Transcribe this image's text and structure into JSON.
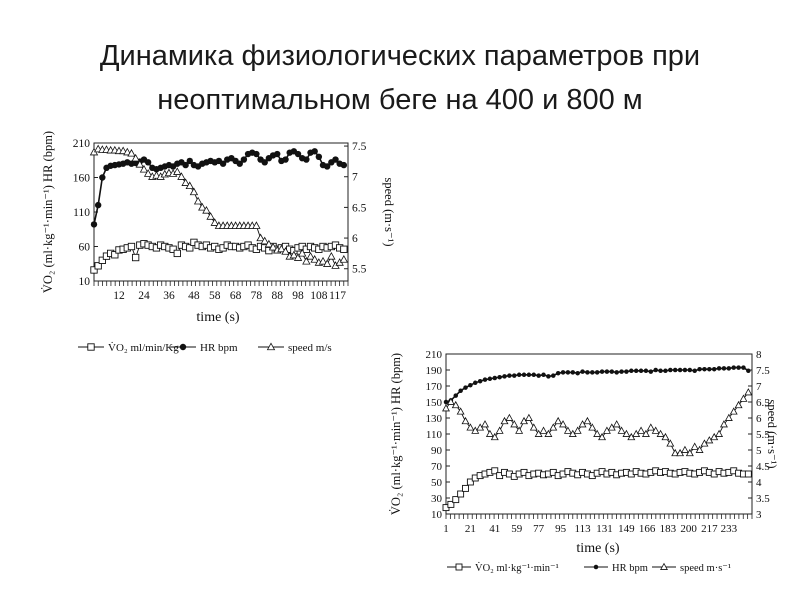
{
  "slide": {
    "title_line1": "Динамика физиологических параметров при",
    "title_line2": "неоптимальном беге на 400 и 800 м"
  },
  "chart_data": [
    {
      "type": "line",
      "title": "",
      "xlabel": "time (s)",
      "ylabel": "V̇O₂ (ml·kg⁻¹·min⁻¹) HR (bpm)",
      "ylabel_right": "speed (m·s⁻¹)",
      "x_ticks": [
        "12",
        "24",
        "36",
        "48",
        "58",
        "68",
        "78",
        "88",
        "98",
        "108",
        "117"
      ],
      "y_ticks": [
        10,
        60,
        110,
        160,
        210
      ],
      "y2_ticks": [
        "5.5",
        "6",
        "6.5",
        "7",
        "7.5"
      ],
      "ylim": [
        10,
        210
      ],
      "y2lim": [
        5.3,
        7.55
      ],
      "xlim": [
        0,
        122
      ],
      "grid": false,
      "legend_position": "bottom",
      "legend": [
        "V̇O₂ ml/min/Kg",
        "HR bpm",
        "speed m/s"
      ],
      "series": [
        {
          "name": "V̇O₂ ml/min/Kg",
          "axis": "left",
          "marker": "square",
          "x": [
            0,
            2,
            4,
            6,
            8,
            10,
            12,
            14,
            16,
            18,
            20,
            22,
            24,
            26,
            28,
            30,
            32,
            34,
            36,
            38,
            40,
            42,
            44,
            46,
            48,
            50,
            52,
            54,
            56,
            58,
            60,
            62,
            64,
            66,
            68,
            70,
            72,
            74,
            76,
            78,
            80,
            82,
            84,
            86,
            88,
            90,
            92,
            94,
            96,
            98,
            100,
            102,
            104,
            106,
            108,
            110,
            112,
            114,
            116,
            118,
            120
          ],
          "values": [
            26,
            32,
            40,
            46,
            50,
            48,
            55,
            56,
            58,
            60,
            44,
            62,
            64,
            62,
            60,
            58,
            62,
            60,
            58,
            56,
            50,
            62,
            60,
            58,
            66,
            62,
            60,
            62,
            58,
            60,
            56,
            58,
            62,
            60,
            60,
            58,
            60,
            62,
            58,
            56,
            60,
            58,
            54,
            60,
            56,
            58,
            60,
            56,
            54,
            58,
            60,
            56,
            60,
            58,
            56,
            60,
            58,
            60,
            62,
            58,
            56
          ]
        },
        {
          "name": "HR bpm",
          "axis": "left",
          "marker": "circle",
          "x": [
            0,
            2,
            4,
            6,
            8,
            10,
            12,
            14,
            16,
            18,
            20,
            22,
            24,
            26,
            28,
            30,
            32,
            34,
            36,
            38,
            40,
            42,
            44,
            46,
            48,
            50,
            52,
            54,
            56,
            58,
            60,
            62,
            64,
            66,
            68,
            70,
            72,
            74,
            76,
            78,
            80,
            82,
            84,
            86,
            88,
            90,
            92,
            94,
            96,
            98,
            100,
            102,
            104,
            106,
            108,
            110,
            112,
            114,
            116,
            118,
            120
          ],
          "values": [
            92,
            120,
            160,
            174,
            177,
            178,
            179,
            180,
            182,
            180,
            181,
            183,
            186,
            182,
            174,
            172,
            174,
            176,
            178,
            176,
            180,
            182,
            178,
            184,
            178,
            176,
            180,
            182,
            184,
            182,
            184,
            180,
            186,
            188,
            184,
            180,
            186,
            194,
            196,
            194,
            186,
            182,
            188,
            192,
            194,
            184,
            186,
            196,
            198,
            194,
            188,
            186,
            196,
            198,
            190,
            178,
            176,
            182,
            186,
            180,
            178
          ]
        },
        {
          "name": "speed m/s",
          "axis": "right",
          "marker": "triangle",
          "x": [
            0,
            2,
            4,
            6,
            8,
            10,
            12,
            14,
            16,
            18,
            20,
            22,
            24,
            26,
            28,
            30,
            32,
            34,
            36,
            38,
            40,
            42,
            44,
            46,
            48,
            50,
            52,
            54,
            56,
            58,
            60,
            62,
            64,
            66,
            68,
            70,
            72,
            74,
            76,
            78,
            80,
            82,
            84,
            86,
            88,
            90,
            92,
            94,
            96,
            98,
            100,
            102,
            104,
            106,
            108,
            110,
            112,
            114,
            116,
            118,
            120
          ],
          "values": [
            7.4,
            7.45,
            7.44,
            7.44,
            7.43,
            7.43,
            7.42,
            7.42,
            7.4,
            7.38,
            7.3,
            7.2,
            7.12,
            7.05,
            7.0,
            7.02,
            7.0,
            7.04,
            7.06,
            7.05,
            7.08,
            7.0,
            6.9,
            6.85,
            6.75,
            6.6,
            6.5,
            6.45,
            6.35,
            6.25,
            6.2,
            6.2,
            6.2,
            6.2,
            6.2,
            6.2,
            6.2,
            6.2,
            6.2,
            6.2,
            6.0,
            5.95,
            5.9,
            5.85,
            5.8,
            5.82,
            5.78,
            5.7,
            5.72,
            5.68,
            5.75,
            5.62,
            5.7,
            5.65,
            5.6,
            5.62,
            5.58,
            5.7,
            5.55,
            5.6,
            5.65
          ]
        }
      ]
    },
    {
      "type": "line",
      "title": "",
      "xlabel": "time (s)",
      "ylabel": "V̇O₂ (ml·kg⁻¹·min⁻¹) HR (bpm)",
      "ylabel_right": "speed (m·s⁻¹)",
      "x_ticks": [
        "1",
        "21",
        "41",
        "59",
        "77",
        "95",
        "113",
        "131",
        "149",
        "166",
        "183",
        "200",
        "217",
        "233"
      ],
      "y_ticks": [
        10,
        30,
        50,
        70,
        90,
        110,
        130,
        150,
        170,
        190,
        210
      ],
      "y2_ticks": [
        "3",
        "3.5",
        "4",
        "4.5",
        "5",
        "5.5",
        "6",
        "6.5",
        "7",
        "7.5",
        "8"
      ],
      "ylim": [
        10,
        210
      ],
      "y2lim": [
        3,
        8
      ],
      "xlim": [
        1,
        252
      ],
      "grid": false,
      "legend_position": "bottom",
      "legend": [
        "V̇O₂ ml·kg⁻¹·min⁻¹",
        "HR bpm",
        "speed m·s⁻¹"
      ],
      "series": [
        {
          "name": "V̇O₂ ml·kg⁻¹·min⁻¹",
          "axis": "left",
          "marker": "square",
          "x": [
            1,
            5,
            9,
            13,
            17,
            21,
            25,
            29,
            33,
            37,
            41,
            45,
            49,
            53,
            57,
            61,
            65,
            69,
            73,
            77,
            81,
            85,
            89,
            93,
            97,
            101,
            105,
            109,
            113,
            117,
            121,
            125,
            129,
            133,
            137,
            141,
            145,
            149,
            153,
            157,
            161,
            165,
            169,
            173,
            177,
            181,
            185,
            189,
            193,
            197,
            201,
            205,
            209,
            213,
            217,
            221,
            225,
            229,
            233,
            237,
            241,
            245,
            249
          ],
          "values": [
            18,
            22,
            28,
            35,
            42,
            50,
            55,
            58,
            60,
            62,
            64,
            58,
            62,
            60,
            57,
            60,
            62,
            58,
            60,
            61,
            59,
            60,
            62,
            58,
            60,
            63,
            61,
            59,
            62,
            60,
            58,
            61,
            63,
            60,
            62,
            59,
            61,
            62,
            60,
            63,
            61,
            60,
            62,
            64,
            62,
            63,
            61,
            60,
            62,
            63,
            61,
            60,
            62,
            64,
            62,
            60,
            63,
            61,
            62,
            64,
            61,
            60,
            60
          ]
        },
        {
          "name": "HR bpm",
          "axis": "left",
          "marker": "dot",
          "x": [
            1,
            5,
            9,
            13,
            17,
            21,
            25,
            29,
            33,
            37,
            41,
            45,
            49,
            53,
            57,
            61,
            65,
            69,
            73,
            77,
            81,
            85,
            89,
            93,
            97,
            101,
            105,
            109,
            113,
            117,
            121,
            125,
            129,
            133,
            137,
            141,
            145,
            149,
            153,
            157,
            161,
            165,
            169,
            173,
            177,
            181,
            185,
            189,
            193,
            197,
            201,
            205,
            209,
            213,
            217,
            221,
            225,
            229,
            233,
            237,
            241,
            245,
            249
          ],
          "values": [
            150,
            152,
            158,
            164,
            168,
            171,
            174,
            176,
            178,
            179,
            180,
            181,
            182,
            183,
            183,
            184,
            184,
            184,
            184,
            183,
            184,
            182,
            183,
            186,
            187,
            187,
            187,
            186,
            188,
            187,
            187,
            187,
            188,
            188,
            188,
            187,
            188,
            188,
            189,
            189,
            189,
            189,
            188,
            190,
            189,
            189,
            190,
            190,
            190,
            190,
            190,
            189,
            191,
            191,
            191,
            191,
            192,
            192,
            192,
            193,
            193,
            193,
            189
          ]
        },
        {
          "name": "speed m·s⁻¹",
          "axis": "right",
          "marker": "triangle",
          "x": [
            1,
            5,
            9,
            13,
            17,
            21,
            25,
            29,
            33,
            37,
            41,
            45,
            49,
            53,
            57,
            61,
            65,
            69,
            73,
            77,
            81,
            85,
            89,
            93,
            97,
            101,
            105,
            109,
            113,
            117,
            121,
            125,
            129,
            133,
            137,
            141,
            145,
            149,
            153,
            157,
            161,
            165,
            169,
            173,
            177,
            181,
            185,
            189,
            193,
            197,
            201,
            205,
            209,
            213,
            217,
            221,
            225,
            229,
            233,
            237,
            241,
            245,
            249
          ],
          "values": [
            6.3,
            6.5,
            6.4,
            6.2,
            5.9,
            5.7,
            5.6,
            5.7,
            5.8,
            5.5,
            5.4,
            5.6,
            5.9,
            6.0,
            5.8,
            5.6,
            5.9,
            6.0,
            5.7,
            5.5,
            5.6,
            5.5,
            5.7,
            5.9,
            5.8,
            5.6,
            5.5,
            5.6,
            5.8,
            5.9,
            5.7,
            5.5,
            5.4,
            5.6,
            5.7,
            5.8,
            5.6,
            5.5,
            5.4,
            5.5,
            5.6,
            5.5,
            5.7,
            5.6,
            5.5,
            5.4,
            5.2,
            4.9,
            4.9,
            5.0,
            4.9,
            5.1,
            5.0,
            5.2,
            5.3,
            5.4,
            5.5,
            5.8,
            6.0,
            6.2,
            6.4,
            6.6,
            6.8
          ]
        }
      ]
    }
  ]
}
